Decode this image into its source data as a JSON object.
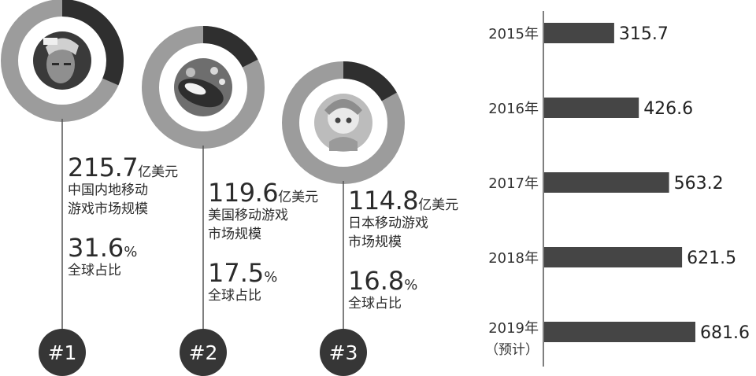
{
  "games": [
    {
      "value": "215.7",
      "unit": "亿美元",
      "desc1": "中国内地移动",
      "desc2": "游戏市场规模",
      "share": "31.6",
      "share_unit": "%",
      "share_label": "全球占比",
      "rank": "#1",
      "share_fraction": 0.316
    },
    {
      "value": "119.6",
      "unit": "亿美元",
      "desc1": "美国移动游戏",
      "desc2": "市场规模",
      "share": "17.5",
      "share_unit": "%",
      "share_label": "全球占比",
      "rank": "#2",
      "share_fraction": 0.175
    },
    {
      "value": "114.8",
      "unit": "亿美元",
      "desc1": "日本移动游戏",
      "desc2": "市场规模",
      "share": "16.8",
      "share_unit": "%",
      "share_label": "全球占比",
      "rank": "#3",
      "share_fraction": 0.168
    }
  ],
  "chart_data": {
    "type": "bar",
    "orientation": "horizontal",
    "categories": [
      "2015年",
      "2016年",
      "2017年",
      "2018年",
      "2019年"
    ],
    "category_sublabels": [
      "",
      "",
      "",
      "",
      "（预计）"
    ],
    "values": [
      315.7,
      426.6,
      563.2,
      621.5,
      681.6
    ],
    "value_labels": [
      "315.7",
      "426.6",
      "563.2",
      "621.5",
      "681.6"
    ],
    "xlim": [
      0,
      681.6
    ],
    "title": "",
    "xlabel": "",
    "ylabel": "",
    "grid": false,
    "bar_color": "#454545"
  }
}
